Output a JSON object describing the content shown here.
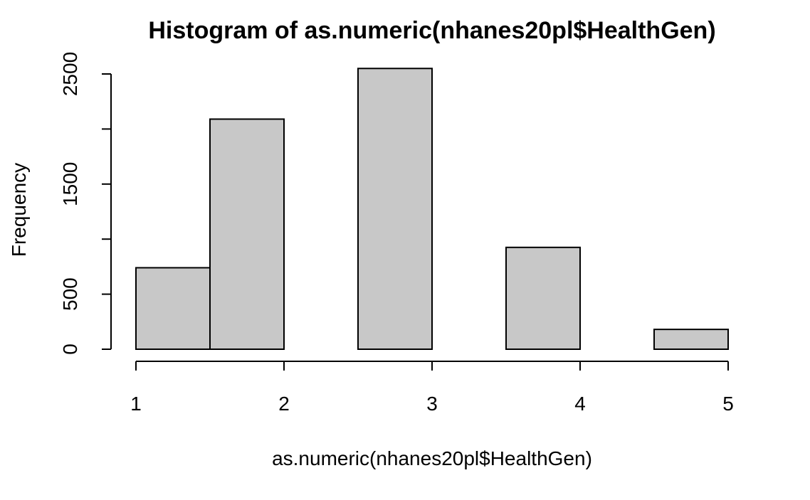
{
  "chart_data": {
    "type": "bar",
    "title": "Histogram of as.numeric(nhanes20pl$HealthGen)",
    "xlabel": "as.numeric(nhanes20pl$HealthGen)",
    "ylabel": "Frequency",
    "bins": [
      {
        "x0": 1.0,
        "x1": 1.5,
        "value": 740
      },
      {
        "x0": 1.5,
        "x1": 2.0,
        "value": 2090
      },
      {
        "x0": 2.0,
        "x1": 2.5,
        "value": 0
      },
      {
        "x0": 2.5,
        "x1": 3.0,
        "value": 2550
      },
      {
        "x0": 3.0,
        "x1": 3.5,
        "value": 0
      },
      {
        "x0": 3.5,
        "x1": 4.0,
        "value": 925
      },
      {
        "x0": 4.0,
        "x1": 4.5,
        "value": 0
      },
      {
        "x0": 4.5,
        "x1": 5.0,
        "value": 180
      }
    ],
    "xlim": [
      1,
      5
    ],
    "ylim": [
      0,
      2500
    ],
    "x_ticks": [
      1,
      2,
      3,
      4,
      5
    ],
    "x_tick_labels": [
      "1",
      "2",
      "3",
      "4",
      "5"
    ],
    "y_ticks": [
      0,
      500,
      1000,
      1500,
      2000,
      2500
    ],
    "y_tick_labels": [
      "0",
      "500",
      "",
      "1500",
      "",
      "2500"
    ],
    "colors": {
      "bar_fill": "#c8c8c8",
      "bar_stroke": "#000000"
    },
    "grid": false,
    "legend": "none"
  }
}
